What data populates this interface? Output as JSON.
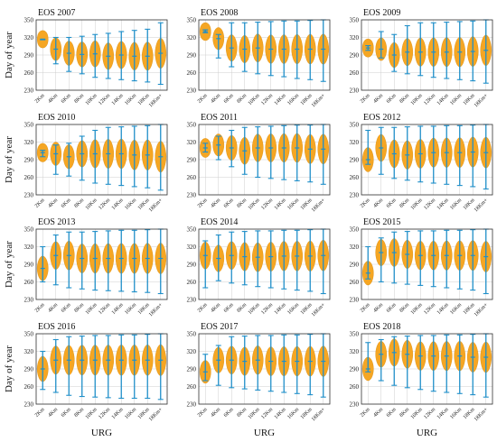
{
  "figure": {
    "ylabel": "Day of year",
    "xlabel": "URG",
    "colors": {
      "violin": "#F5A623",
      "whisker": "#1F8FC9",
      "grid": "#cfcfcf",
      "frame": "#333333"
    }
  },
  "chart_data": [
    {
      "type": "violin",
      "title": "EOS 2007",
      "categories": [
        "2Km",
        "4Km",
        "6Km",
        "8Km",
        "10Km",
        "12Km",
        "14Km",
        "16Km",
        "18Km",
        "18Km+"
      ],
      "ylim": [
        230,
        350
      ],
      "yticks": [
        230,
        260,
        290,
        320,
        350
      ],
      "median": [
        317,
        300,
        293,
        291,
        292,
        288,
        290,
        288,
        288,
        293
      ],
      "whisker": [
        [
          316,
          317
        ],
        [
          275,
          320
        ],
        [
          262,
          320
        ],
        [
          258,
          322
        ],
        [
          252,
          325
        ],
        [
          250,
          327
        ],
        [
          248,
          330
        ],
        [
          246,
          332
        ],
        [
          244,
          334
        ],
        [
          240,
          345
        ]
      ]
    },
    {
      "type": "violin",
      "title": "EOS 2008",
      "categories": [
        "2Km",
        "4Km",
        "6Km",
        "8Km",
        "10Km",
        "12Km",
        "14Km",
        "16Km",
        "18Km",
        "18Km+"
      ],
      "ylim": [
        230,
        350
      ],
      "yticks": [
        230,
        260,
        290,
        320,
        350
      ],
      "median": [
        330,
        318,
        302,
        300,
        302,
        300,
        300,
        300,
        300,
        300
      ],
      "whisker": [
        [
          328,
          333
        ],
        [
          285,
          325
        ],
        [
          270,
          345
        ],
        [
          262,
          345
        ],
        [
          258,
          346
        ],
        [
          255,
          347
        ],
        [
          253,
          348
        ],
        [
          250,
          348
        ],
        [
          248,
          349
        ],
        [
          245,
          350
        ]
      ]
    },
    {
      "type": "violin",
      "title": "EOS 2009",
      "categories": [
        "2Km",
        "4Km",
        "6Km",
        "8Km",
        "10Km",
        "12Km",
        "14Km",
        "16Km",
        "18Km",
        "18Km+"
      ],
      "ylim": [
        230,
        350
      ],
      "yticks": [
        230,
        260,
        290,
        320,
        350
      ],
      "median": [
        302,
        300,
        290,
        295,
        295,
        295,
        295,
        295,
        296,
        298
      ],
      "whisker": [
        [
          298,
          306
        ],
        [
          285,
          330
        ],
        [
          262,
          325
        ],
        [
          258,
          340
        ],
        [
          255,
          345
        ],
        [
          252,
          345
        ],
        [
          250,
          346
        ],
        [
          248,
          347
        ],
        [
          246,
          348
        ],
        [
          242,
          350
        ]
      ]
    },
    {
      "type": "violin",
      "title": "EOS 2010",
      "categories": [
        "2Km",
        "4Km",
        "6Km",
        "8Km",
        "10Km",
        "12Km",
        "14Km",
        "16Km",
        "18Km",
        "18Km+"
      ],
      "ylim": [
        230,
        350
      ],
      "yticks": [
        230,
        260,
        290,
        320,
        350
      ],
      "median": [
        302,
        300,
        295,
        300,
        300,
        300,
        300,
        298,
        298,
        295
      ],
      "whisker": [
        [
          295,
          306
        ],
        [
          265,
          315
        ],
        [
          262,
          318
        ],
        [
          255,
          330
        ],
        [
          250,
          340
        ],
        [
          248,
          345
        ],
        [
          246,
          346
        ],
        [
          244,
          347
        ],
        [
          242,
          348
        ],
        [
          238,
          350
        ]
      ]
    },
    {
      "type": "violin",
      "title": "EOS 2011",
      "categories": [
        "2Km",
        "4Km",
        "6Km",
        "8Km",
        "10Km",
        "12Km",
        "14Km",
        "16Km",
        "18Km",
        "18Km+"
      ],
      "ylim": [
        230,
        350
      ],
      "yticks": [
        230,
        260,
        290,
        320,
        350
      ],
      "median": [
        310,
        315,
        310,
        305,
        310,
        310,
        310,
        310,
        308,
        308
      ],
      "whisker": [
        [
          303,
          318
        ],
        [
          290,
          330
        ],
        [
          278,
          340
        ],
        [
          265,
          345
        ],
        [
          260,
          346
        ],
        [
          258,
          347
        ],
        [
          256,
          348
        ],
        [
          254,
          349
        ],
        [
          252,
          349
        ],
        [
          248,
          350
        ]
      ]
    },
    {
      "type": "violin",
      "title": "EOS 2012",
      "categories": [
        "2Km",
        "4Km",
        "6Km",
        "8Km",
        "10Km",
        "12Km",
        "14Km",
        "16Km",
        "18Km",
        "18Km+"
      ],
      "ylim": [
        230,
        350
      ],
      "yticks": [
        230,
        260,
        290,
        320,
        350
      ],
      "median": [
        290,
        310,
        300,
        298,
        300,
        302,
        302,
        302,
        303,
        302
      ],
      "whisker": [
        [
          282,
          340
        ],
        [
          265,
          345
        ],
        [
          258,
          345
        ],
        [
          255,
          346
        ],
        [
          252,
          347
        ],
        [
          250,
          347
        ],
        [
          248,
          348
        ],
        [
          246,
          348
        ],
        [
          244,
          349
        ],
        [
          240,
          350
        ]
      ]
    },
    {
      "type": "violin",
      "title": "EOS 2013",
      "categories": [
        "2Km",
        "4Km",
        "6Km",
        "8Km",
        "10Km",
        "12Km",
        "14Km",
        "16Km",
        "18Km",
        "18Km+"
      ],
      "ylim": [
        230,
        350
      ],
      "yticks": [
        230,
        260,
        290,
        320,
        350
      ],
      "median": [
        283,
        305,
        305,
        300,
        300,
        300,
        300,
        300,
        300,
        300
      ],
      "whisker": [
        [
          260,
          320
        ],
        [
          255,
          340
        ],
        [
          250,
          345
        ],
        [
          248,
          345
        ],
        [
          246,
          346
        ],
        [
          245,
          347
        ],
        [
          244,
          348
        ],
        [
          243,
          348
        ],
        [
          242,
          349
        ],
        [
          240,
          350
        ]
      ]
    },
    {
      "type": "violin",
      "title": "EOS 2014",
      "categories": [
        "2Km",
        "4Km",
        "6Km",
        "8Km",
        "10Km",
        "12Km",
        "14Km",
        "16Km",
        "18Km",
        "18Km+"
      ],
      "ylim": [
        230,
        350
      ],
      "yticks": [
        230,
        260,
        290,
        320,
        350
      ],
      "median": [
        305,
        300,
        305,
        303,
        302,
        303,
        304,
        304,
        304,
        305
      ],
      "whisker": [
        [
          250,
          330
        ],
        [
          262,
          340
        ],
        [
          258,
          345
        ],
        [
          255,
          346
        ],
        [
          252,
          347
        ],
        [
          250,
          347
        ],
        [
          248,
          348
        ],
        [
          246,
          348
        ],
        [
          244,
          349
        ],
        [
          240,
          350
        ]
      ]
    },
    {
      "type": "violin",
      "title": "EOS 2015",
      "categories": [
        "2Km",
        "4Km",
        "6Km",
        "8Km",
        "10Km",
        "12Km",
        "14Km",
        "16Km",
        "18Km",
        "18Km+"
      ],
      "ylim": [
        230,
        350
      ],
      "yticks": [
        230,
        260,
        290,
        320,
        350
      ],
      "median": [
        275,
        310,
        310,
        307,
        305,
        305,
        305,
        305,
        305,
        303
      ],
      "whisker": [
        [
          265,
          320
        ],
        [
          260,
          335
        ],
        [
          258,
          345
        ],
        [
          256,
          346
        ],
        [
          254,
          347
        ],
        [
          252,
          347
        ],
        [
          250,
          348
        ],
        [
          248,
          348
        ],
        [
          246,
          349
        ],
        [
          240,
          350
        ]
      ]
    },
    {
      "type": "violin",
      "title": "EOS 2016",
      "categories": [
        "2Km",
        "4Km",
        "6Km",
        "8Km",
        "10Km",
        "12Km",
        "14Km",
        "16Km",
        "18Km",
        "18Km+"
      ],
      "ylim": [
        230,
        350
      ],
      "yticks": [
        230,
        260,
        290,
        320,
        350
      ],
      "median": [
        290,
        305,
        305,
        305,
        305,
        305,
        305,
        305,
        305,
        305
      ],
      "whisker": [
        [
          255,
          320
        ],
        [
          250,
          340
        ],
        [
          245,
          345
        ],
        [
          243,
          346
        ],
        [
          242,
          347
        ],
        [
          241,
          347
        ],
        [
          240,
          348
        ],
        [
          240,
          348
        ],
        [
          240,
          349
        ],
        [
          238,
          350
        ]
      ]
    },
    {
      "type": "violin",
      "title": "EOS 2017",
      "categories": [
        "2Km",
        "4Km",
        "6Km",
        "8Km",
        "10Km",
        "12Km",
        "14Km",
        "16Km",
        "18Km",
        "18Km+"
      ],
      "ylim": [
        230,
        350
      ],
      "yticks": [
        230,
        260,
        290,
        320,
        350
      ],
      "median": [
        285,
        305,
        305,
        303,
        305,
        303,
        303,
        303,
        303,
        303
      ],
      "whisker": [
        [
          270,
          315
        ],
        [
          262,
          330
        ],
        [
          258,
          345
        ],
        [
          256,
          346
        ],
        [
          254,
          347
        ],
        [
          252,
          347
        ],
        [
          250,
          348
        ],
        [
          248,
          348
        ],
        [
          246,
          349
        ],
        [
          242,
          350
        ]
      ]
    },
    {
      "type": "violin",
      "title": "EOS 2018",
      "categories": [
        "2Km",
        "4Km",
        "6Km",
        "8Km",
        "10Km",
        "12Km",
        "14Km",
        "16Km",
        "18Km",
        "18Km+"
      ],
      "ylim": [
        230,
        350
      ],
      "yticks": [
        230,
        260,
        290,
        320,
        350
      ],
      "median": [
        290,
        315,
        318,
        315,
        312,
        312,
        312,
        312,
        310,
        310
      ],
      "whisker": [
        [
          285,
          335
        ],
        [
          270,
          340
        ],
        [
          262,
          345
        ],
        [
          258,
          346
        ],
        [
          255,
          347
        ],
        [
          252,
          347
        ],
        [
          250,
          348
        ],
        [
          248,
          348
        ],
        [
          246,
          349
        ],
        [
          242,
          350
        ]
      ]
    }
  ]
}
